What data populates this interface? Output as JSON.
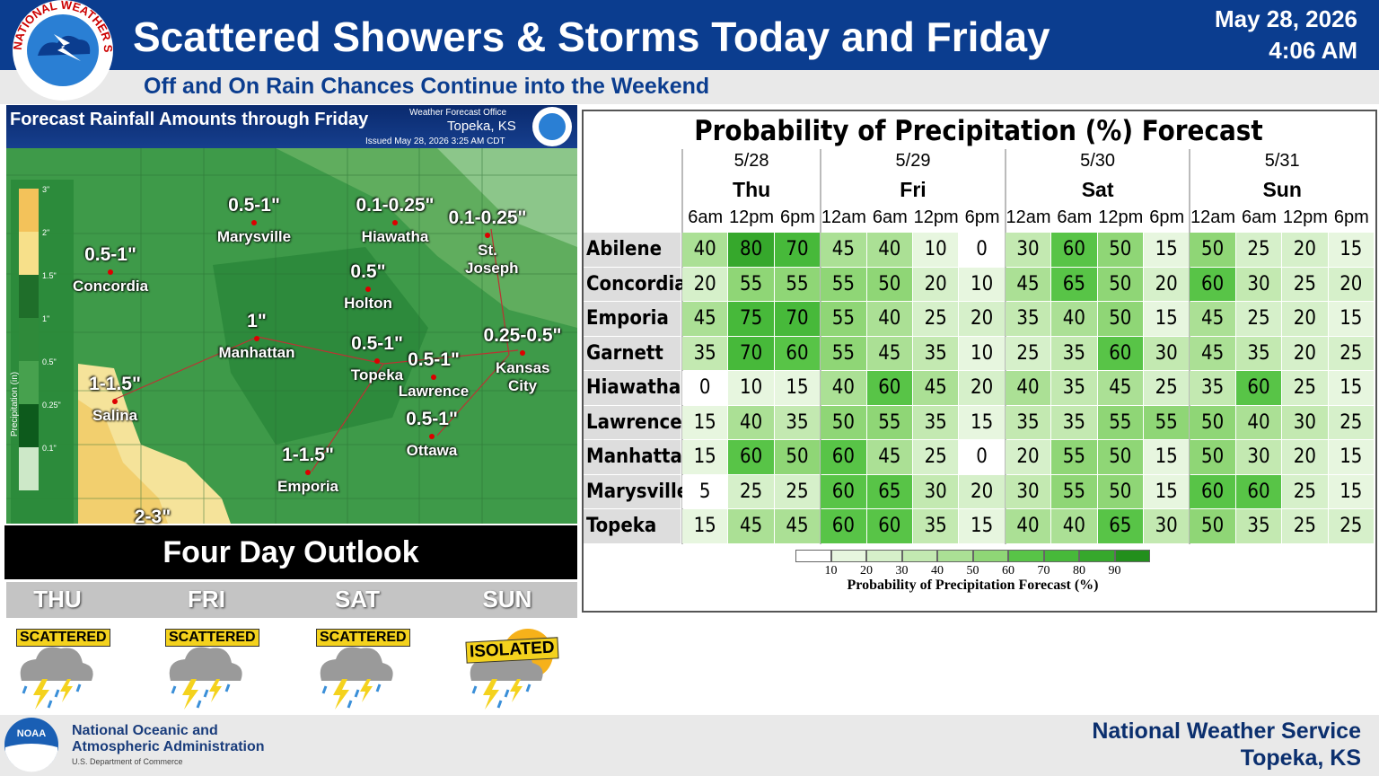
{
  "header": {
    "logo_text": "NATIONAL WEATHER SERVICE",
    "title": "Scattered Showers & Storms Today and Friday",
    "subtitle": "Off and On Rain Chances Continue into the Weekend",
    "date": "May 28, 2026",
    "time": "4:06 AM"
  },
  "map": {
    "title": "Forecast Rainfall Amounts through Friday",
    "office_label": "Weather Forecast Office",
    "office": "Topeka, KS",
    "issued": "Issued May 28, 2026 3:25 AM CDT",
    "legend_title": "Precipitation (in)",
    "legend_labels": [
      "3\"",
      "2\"",
      "1.5\"",
      "1\"",
      "0.5\"",
      "0.25\"",
      "0.1\""
    ],
    "places": [
      {
        "amount": "0.5-1\"",
        "name": "Marysville"
      },
      {
        "amount": "0.1-0.25\"",
        "name": "Hiawatha"
      },
      {
        "amount": "0.1-0.25\"",
        "name": "St. Joseph"
      },
      {
        "amount": "0.5-1\"",
        "name": "Concordia"
      },
      {
        "amount": "0.5\"",
        "name": "Holton"
      },
      {
        "amount": "1\"",
        "name": "Manhattan"
      },
      {
        "amount": "0.5-1\"",
        "name": "Topeka"
      },
      {
        "amount": "0.5-1\"",
        "name": "Lawrence"
      },
      {
        "amount": "0.25-0.5\"",
        "name": "Kansas City"
      },
      {
        "amount": "1-1.5\"",
        "name": "Salina"
      },
      {
        "amount": "0.5-1\"",
        "name": "Ottawa"
      },
      {
        "amount": "1-1.5\"",
        "name": "Emporia"
      }
    ],
    "extra_label": "2-3\""
  },
  "outlook": {
    "title": "Four Day Outlook",
    "days": [
      {
        "day": "THU",
        "label": "SCATTERED"
      },
      {
        "day": "FRI",
        "label": "SCATTERED"
      },
      {
        "day": "SAT",
        "label": "SCATTERED"
      },
      {
        "day": "SUN",
        "label": "ISOLATED"
      }
    ]
  },
  "pop_table": {
    "title": "Probability of Precipitation (%) Forecast",
    "dates": [
      {
        "date": "5/28",
        "day": "Thu",
        "times": [
          "6am",
          "12pm",
          "6pm"
        ]
      },
      {
        "date": "5/29",
        "day": "Fri",
        "times": [
          "12am",
          "6am",
          "12pm",
          "6pm"
        ]
      },
      {
        "date": "5/30",
        "day": "Sat",
        "times": [
          "12am",
          "6am",
          "12pm",
          "6pm"
        ]
      },
      {
        "date": "5/31",
        "day": "Sun",
        "times": [
          "12am",
          "6am",
          "12pm",
          "6pm"
        ]
      }
    ],
    "rows": [
      {
        "city": "Abilene",
        "values": [
          40,
          80,
          70,
          45,
          40,
          10,
          0,
          30,
          60,
          50,
          15,
          50,
          25,
          20,
          15
        ]
      },
      {
        "city": "Concordia",
        "values": [
          20,
          55,
          55,
          55,
          50,
          20,
          10,
          45,
          65,
          50,
          20,
          60,
          30,
          25,
          20
        ]
      },
      {
        "city": "Emporia",
        "values": [
          45,
          75,
          70,
          55,
          40,
          25,
          20,
          35,
          40,
          50,
          15,
          45,
          25,
          20,
          15
        ]
      },
      {
        "city": "Garnett",
        "values": [
          35,
          70,
          60,
          55,
          45,
          35,
          10,
          25,
          35,
          60,
          30,
          45,
          35,
          20,
          25
        ]
      },
      {
        "city": "Hiawatha",
        "values": [
          0,
          10,
          15,
          40,
          60,
          45,
          20,
          40,
          35,
          45,
          25,
          35,
          60,
          25,
          15
        ]
      },
      {
        "city": "Lawrence",
        "values": [
          15,
          40,
          35,
          50,
          55,
          35,
          15,
          35,
          35,
          55,
          55,
          50,
          40,
          30,
          25
        ]
      },
      {
        "city": "Manhattan",
        "values": [
          15,
          60,
          50,
          60,
          45,
          25,
          0,
          20,
          55,
          50,
          15,
          50,
          30,
          20,
          15
        ]
      },
      {
        "city": "Marysville",
        "values": [
          5,
          25,
          25,
          60,
          65,
          30,
          20,
          30,
          55,
          50,
          15,
          60,
          60,
          25,
          15
        ]
      },
      {
        "city": "Topeka",
        "values": [
          15,
          45,
          45,
          60,
          60,
          35,
          15,
          40,
          40,
          65,
          30,
          50,
          35,
          25,
          25
        ]
      }
    ],
    "scale_colors": [
      "#ffffff",
      "#e7f6df",
      "#d6f0ca",
      "#c3e9b1",
      "#abe095",
      "#8fd676",
      "#58c447",
      "#47b93a",
      "#36a82c",
      "#228f1c"
    ],
    "colorbar_ticks": [
      10,
      20,
      30,
      40,
      50,
      60,
      70,
      80,
      90
    ],
    "colorbar_label": "Probability of Precipitation Forecast (%)"
  },
  "footer": {
    "agency_line1": "National Oceanic and",
    "agency_line2": "Atmospheric Administration",
    "department": "U.S. Department of Commerce",
    "logo_text": "NOAA",
    "office_line1": "National Weather Service",
    "office_line2": "Topeka, KS"
  }
}
